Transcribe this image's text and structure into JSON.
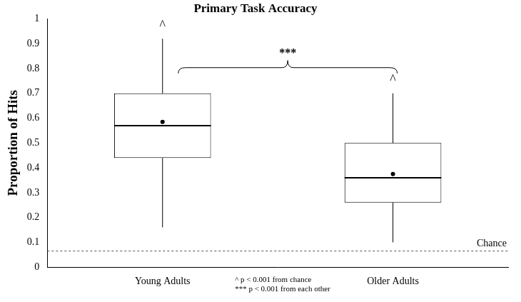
{
  "chart_data": {
    "type": "box",
    "title": "Primary Task Accuracy",
    "y_label": "Proportion of Hits",
    "categories": [
      "Young Adults",
      "Older Adults"
    ],
    "min": [
      0.16,
      0.1
    ],
    "q1": [
      0.44,
      0.26
    ],
    "median": [
      0.57,
      0.36
    ],
    "q3": [
      0.7,
      0.5
    ],
    "max": [
      0.92,
      0.7
    ],
    "mean": [
      0.585,
      0.375
    ],
    "color": "#000000",
    "ylim": [
      0,
      1
    ],
    "yticks": [
      0,
      0.1,
      0.2,
      0.3,
      0.4,
      0.5,
      0.6,
      0.7,
      0.8,
      0.9,
      1
    ],
    "grid": false,
    "reference_line": {
      "value": 0.065,
      "label": "Chance"
    },
    "markers": [
      "^",
      "^"
    ],
    "comparison": {
      "categories": [
        "Young Adults",
        "Older Adults"
      ],
      "label": "***"
    },
    "notes": [
      "^ p < 0.001 from chance",
      "*** p < 0.001 from each other"
    ]
  }
}
